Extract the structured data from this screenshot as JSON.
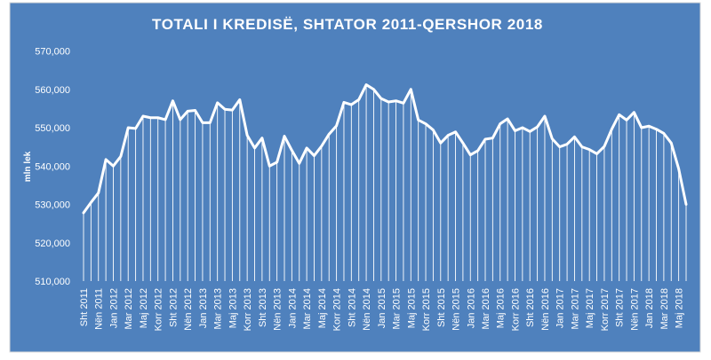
{
  "chart_data": {
    "type": "line",
    "title": "TOTALI I KREDISË, SHTATOR 2011-QERSHOR 2018",
    "ylabel": "mln lek",
    "xlabel": "",
    "ylim": [
      510000,
      570000
    ],
    "yticks": [
      510000,
      520000,
      530000,
      540000,
      550000,
      560000,
      570000
    ],
    "ytick_labels": [
      "510,000",
      "520,000",
      "530,000",
      "540,000",
      "550,000",
      "560,000",
      "570,000"
    ],
    "grid": false,
    "drop_lines": true,
    "colors": {
      "background": "#4f81bd",
      "line": "#ffffff",
      "drop_lines": "#ffffff",
      "outer": "#ffffff"
    },
    "x_tick_labels": [
      "Sht 2011",
      "Nën 2011",
      "Jan 2012",
      "Mar 2012",
      "Maj 2012",
      "Korr 2012",
      "Sht 2012",
      "Nën 2012",
      "Jan 2013",
      "Mar 2013",
      "Maj 2013",
      "Korr 2013",
      "Sht 2013",
      "Nën 2013",
      "Jan 2014",
      "Mar 2014",
      "Maj 2014",
      "Korr 2014",
      "Sht 2014",
      "Nën 2014",
      "Jan 2015",
      "Mar 2015",
      "Maj 2015",
      "Korr 2015",
      "Sht 2015",
      "Nën 2015",
      "Jan 2016",
      "Mar 2016",
      "Maj 2016",
      "Korr 2016",
      "Sht 2016",
      "Nën 2016",
      "Jan 2017",
      "Mar 2017",
      "Maj 2017",
      "Korr 2017",
      "Sht 2017",
      "Nën 2017",
      "Jan 2018",
      "Mar 2018",
      "Maj 2018"
    ],
    "series": [
      {
        "values": [
          527800,
          530500,
          533000,
          541700,
          540000,
          542500,
          550000,
          549800,
          553000,
          552600,
          552600,
          552100,
          557000,
          552100,
          554300,
          554500,
          551300,
          551300,
          556500,
          554800,
          554600,
          557300,
          548000,
          544700,
          547300,
          540000,
          541000,
          547800,
          544100,
          540700,
          544700,
          542700,
          545200,
          548300,
          550500,
          556600,
          556000,
          557300,
          561200,
          560000,
          557600,
          556700,
          557000,
          556400,
          560000,
          552000,
          551000,
          549400,
          546000,
          548000,
          548900,
          546000,
          542900,
          544000,
          547000,
          547300,
          551000,
          552300,
          549200,
          550000,
          549000,
          550200,
          553000,
          547100,
          545000,
          545700,
          547600,
          545000,
          544300,
          543200,
          545100,
          549600,
          553400,
          552000,
          554000,
          550000,
          550400,
          549600,
          548500,
          546000,
          539300,
          530000
        ]
      }
    ]
  }
}
